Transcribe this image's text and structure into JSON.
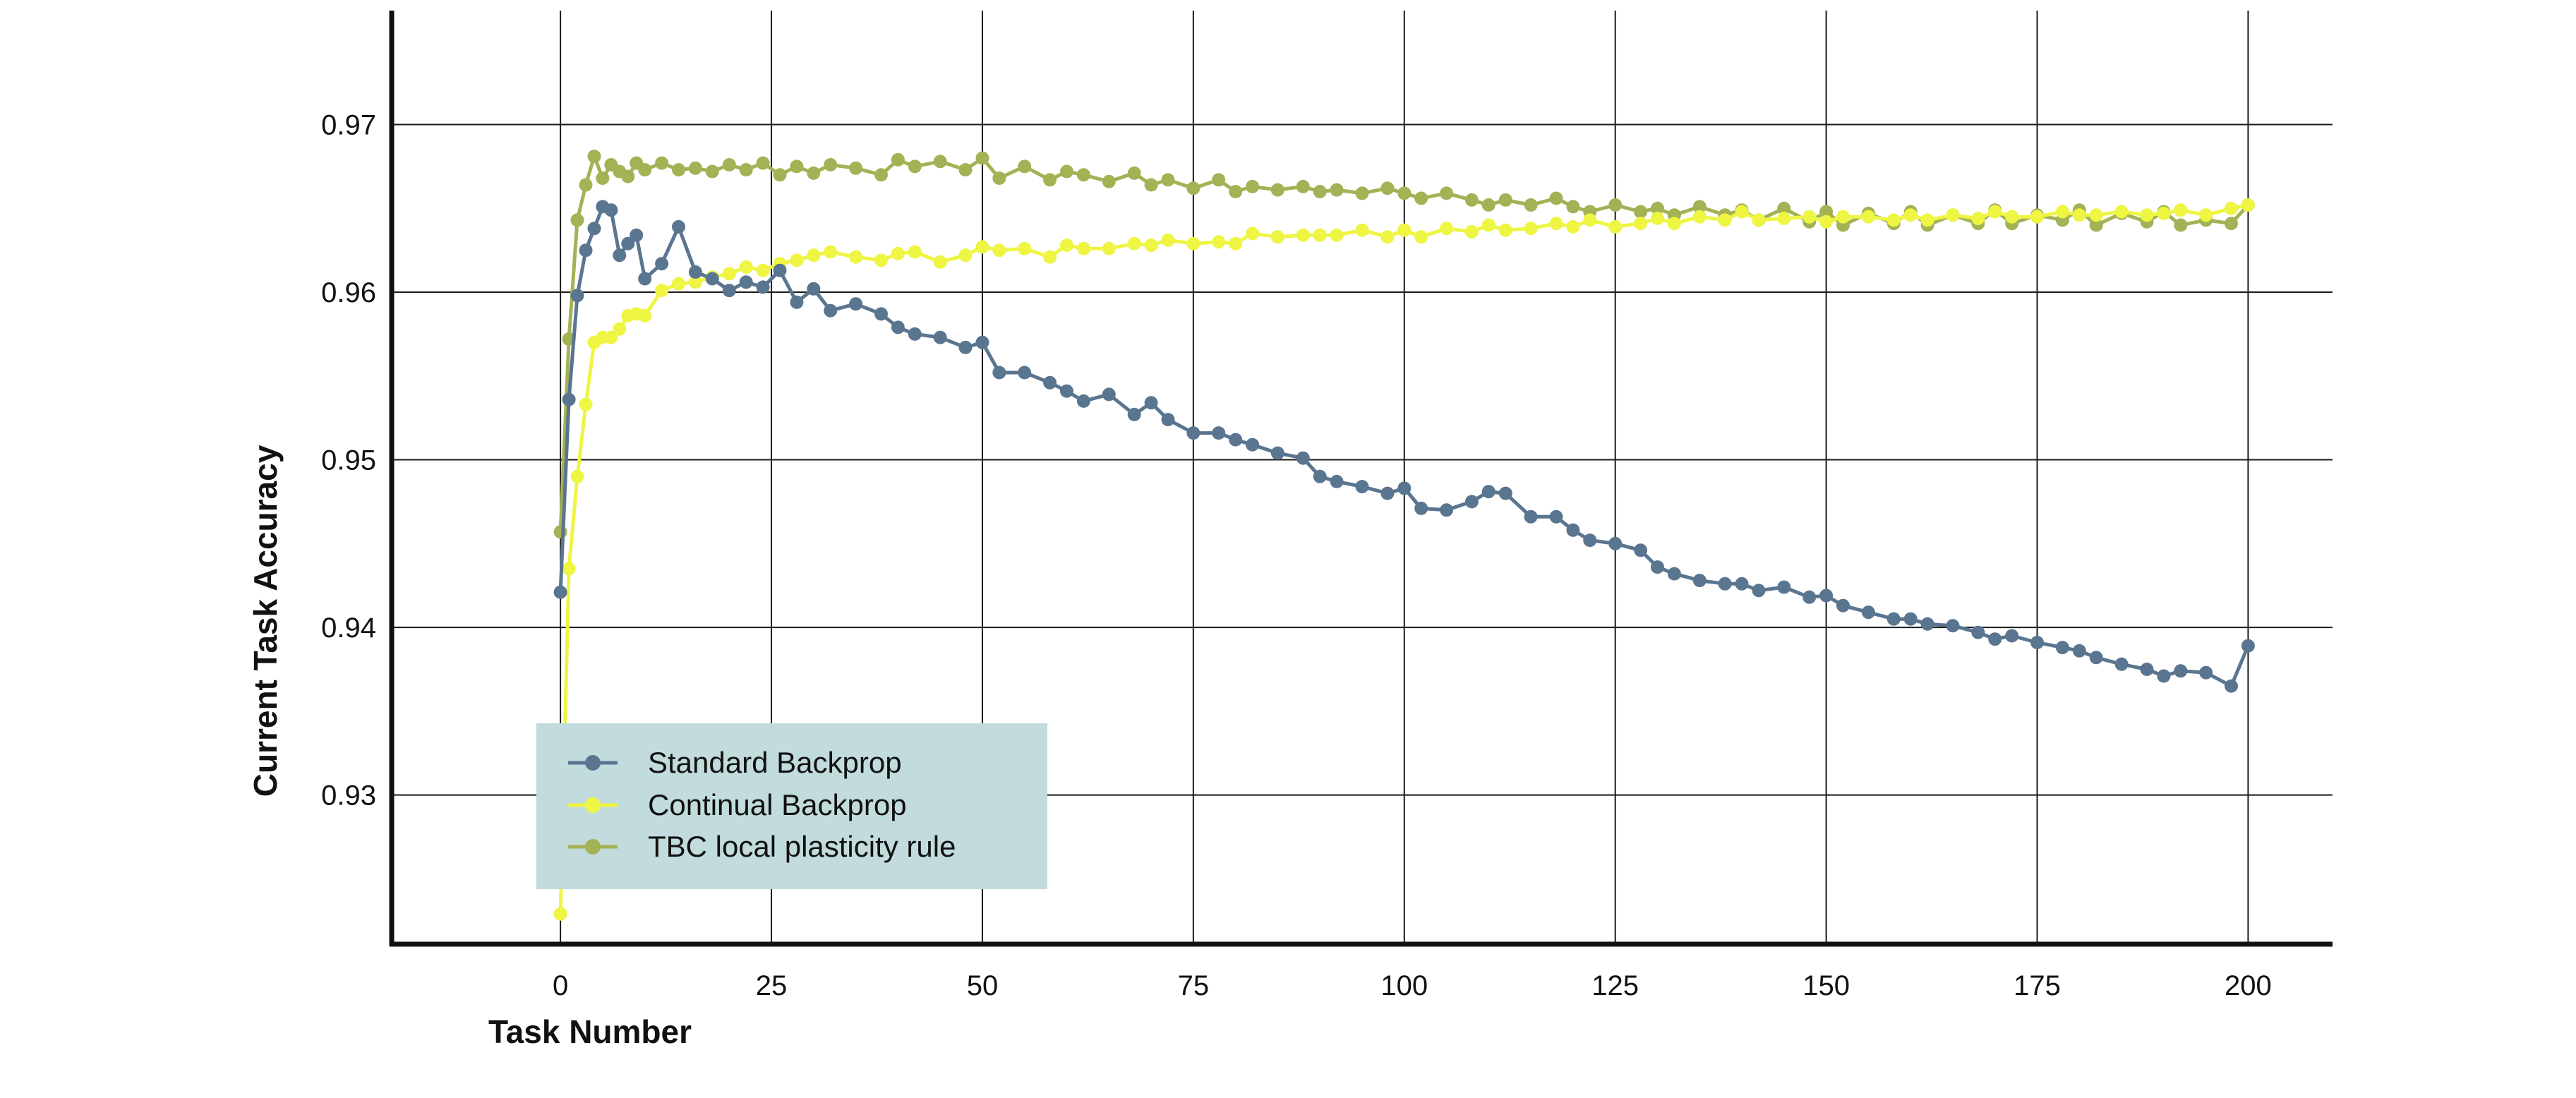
{
  "chart_data": {
    "type": "line",
    "title": "",
    "xlabel": "Task Number",
    "ylabel": "Current Task Accuracy",
    "xlim": [
      -20,
      210
    ],
    "ylim": [
      0.9211,
      0.9768
    ],
    "xticks": [
      0,
      25,
      50,
      75,
      100,
      125,
      150,
      175,
      200
    ],
    "xtick_labels": [
      "0",
      "25",
      "50",
      "75",
      "100",
      "125",
      "150",
      "175",
      "200"
    ],
    "yticks": [
      0.93,
      0.94,
      0.95,
      0.96,
      0.97
    ],
    "ytick_labels": [
      "0.93",
      "0.94",
      "0.95",
      "0.96",
      "0.97"
    ],
    "grid": true,
    "legend_position": "lower-left",
    "legend": [
      {
        "label": "Standard Backprop",
        "color": "#5a7590"
      },
      {
        "label": "Continual Backprop",
        "color": "#eef542"
      },
      {
        "label": "TBC local plasticity rule",
        "color": "#a3b255"
      }
    ],
    "x": [
      0,
      1,
      2,
      3,
      4,
      5,
      6,
      7,
      8,
      9,
      10,
      12,
      14,
      16,
      18,
      20,
      22,
      24,
      26,
      28,
      30,
      32,
      35,
      38,
      40,
      42,
      45,
      48,
      50,
      52,
      55,
      58,
      60,
      62,
      65,
      68,
      70,
      72,
      75,
      78,
      80,
      82,
      85,
      88,
      90,
      92,
      95,
      98,
      100,
      102,
      105,
      108,
      110,
      112,
      115,
      118,
      120,
      122,
      125,
      128,
      130,
      132,
      135,
      138,
      140,
      142,
      145,
      148,
      150,
      152,
      155,
      158,
      160,
      162,
      165,
      168,
      170,
      172,
      175,
      178,
      180,
      182,
      185,
      188,
      190,
      192,
      195,
      198,
      200
    ],
    "series": [
      {
        "name": "Standard Backprop",
        "color": "#5a7590",
        "values": [
          0.9421,
          0.9536,
          0.9598,
          0.9625,
          0.9638,
          0.9651,
          0.9649,
          0.9622,
          0.9629,
          0.9634,
          0.9608,
          0.9617,
          0.9639,
          0.9612,
          0.9608,
          0.9601,
          0.9606,
          0.9603,
          0.9613,
          0.9594,
          0.9602,
          0.9589,
          0.9593,
          0.9587,
          0.9579,
          0.9575,
          0.9573,
          0.9567,
          0.957,
          0.9552,
          0.9552,
          0.9546,
          0.9541,
          0.9535,
          0.9539,
          0.9527,
          0.9534,
          0.9524,
          0.9516,
          0.9516,
          0.9512,
          0.9509,
          0.9504,
          0.9501,
          0.949,
          0.9487,
          0.9484,
          0.948,
          0.9483,
          0.9471,
          0.947,
          0.9475,
          0.9481,
          0.948,
          0.9466,
          0.9466,
          0.9458,
          0.9452,
          0.945,
          0.9446,
          0.9436,
          0.9432,
          0.9428,
          0.9426,
          0.9426,
          0.9422,
          0.9424,
          0.9418,
          0.9419,
          0.9413,
          0.9409,
          0.9405,
          0.9405,
          0.9402,
          0.9401,
          0.9397,
          0.9393,
          0.9395,
          0.9391,
          0.9388,
          0.9386,
          0.9382,
          0.9378,
          0.9375,
          0.9371,
          0.9374,
          0.9373,
          0.9365,
          0.9389
        ]
      },
      {
        "name": "Continual Backprop",
        "color": "#eef542",
        "values": [
          0.9229,
          0.9435,
          0.949,
          0.9533,
          0.957,
          0.9573,
          0.9573,
          0.9578,
          0.9586,
          0.9587,
          0.9586,
          0.9601,
          0.9605,
          0.9606,
          0.9609,
          0.9611,
          0.9615,
          0.9613,
          0.9617,
          0.9619,
          0.9622,
          0.9624,
          0.9621,
          0.9619,
          0.9623,
          0.9624,
          0.9618,
          0.9622,
          0.9627,
          0.9625,
          0.9626,
          0.9621,
          0.9628,
          0.9626,
          0.9626,
          0.9629,
          0.9628,
          0.9631,
          0.9629,
          0.963,
          0.9629,
          0.9635,
          0.9633,
          0.9634,
          0.9634,
          0.9634,
          0.9637,
          0.9633,
          0.9637,
          0.9633,
          0.9638,
          0.9636,
          0.964,
          0.9637,
          0.9638,
          0.9641,
          0.9639,
          0.9643,
          0.9639,
          0.9641,
          0.9644,
          0.9641,
          0.9645,
          0.9643,
          0.9648,
          0.9643,
          0.9644,
          0.9645,
          0.9642,
          0.9645,
          0.9645,
          0.9643,
          0.9646,
          0.9643,
          0.9646,
          0.9644,
          0.9648,
          0.9645,
          0.9645,
          0.9648,
          0.9646,
          0.9646,
          0.9648,
          0.9646,
          0.9647,
          0.9649,
          0.9646,
          0.965,
          0.9652
        ]
      },
      {
        "name": "TBC local plasticity rule",
        "color": "#a3b255",
        "values": [
          0.9457,
          0.9572,
          0.9643,
          0.9664,
          0.9681,
          0.9668,
          0.9676,
          0.9672,
          0.9669,
          0.9677,
          0.9673,
          0.9677,
          0.9673,
          0.9674,
          0.9672,
          0.9676,
          0.9673,
          0.9677,
          0.967,
          0.9675,
          0.9671,
          0.9676,
          0.9674,
          0.967,
          0.9679,
          0.9675,
          0.9678,
          0.9673,
          0.968,
          0.9668,
          0.9675,
          0.9667,
          0.9672,
          0.967,
          0.9666,
          0.9671,
          0.9664,
          0.9667,
          0.9662,
          0.9667,
          0.966,
          0.9663,
          0.9661,
          0.9663,
          0.966,
          0.9661,
          0.9659,
          0.9662,
          0.9659,
          0.9656,
          0.9659,
          0.9655,
          0.9652,
          0.9655,
          0.9652,
          0.9656,
          0.9651,
          0.9648,
          0.9652,
          0.9648,
          0.965,
          0.9646,
          0.9651,
          0.9646,
          0.9649,
          0.9643,
          0.965,
          0.9642,
          0.9648,
          0.964,
          0.9647,
          0.9641,
          0.9648,
          0.964,
          0.9646,
          0.9641,
          0.9649,
          0.9641,
          0.9646,
          0.9643,
          0.9649,
          0.964,
          0.9647,
          0.9642,
          0.9648,
          0.964,
          0.9643,
          0.9641,
          0.9652
        ]
      }
    ]
  }
}
